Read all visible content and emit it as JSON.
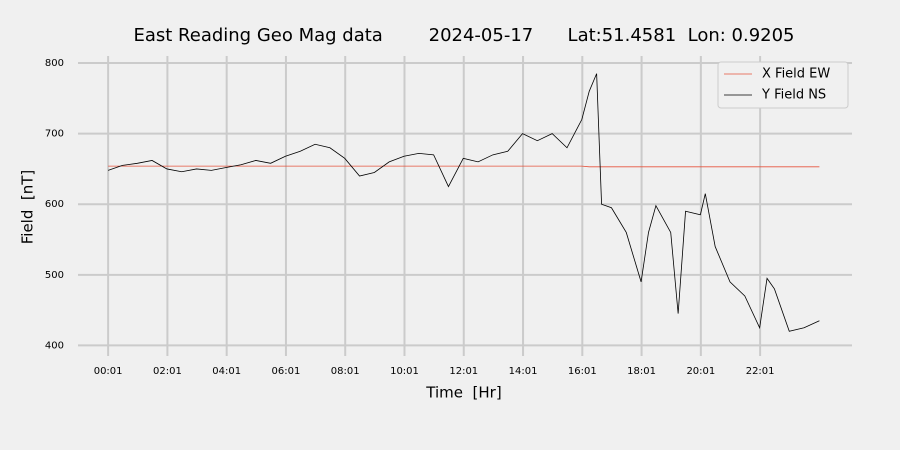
{
  "chart_data": {
    "type": "line",
    "title": "East Reading Geo Mag data        2024-05-17      Lat:51.4581  Lon: 0.9205",
    "x_label": "Time  [Hr]",
    "y_label": "Field  [nT]",
    "x": [
      1,
      30,
      60,
      90,
      120,
      150,
      180,
      210,
      240,
      270,
      300,
      330,
      360,
      390,
      420,
      450,
      480,
      510,
      540,
      570,
      600,
      630,
      660,
      690,
      720,
      750,
      780,
      810,
      840,
      870,
      900,
      930,
      960,
      975,
      990,
      1000,
      1020,
      1050,
      1080,
      1095,
      1110,
      1140,
      1155,
      1170,
      1200,
      1210,
      1230,
      1260,
      1290,
      1320,
      1335,
      1350,
      1380,
      1410,
      1441
    ],
    "series": [
      {
        "name": "X Field EW",
        "color": "#e5533d",
        "values": [
          654,
          654,
          654,
          654,
          654,
          654,
          654,
          654,
          654,
          654,
          654,
          654,
          654,
          654,
          654,
          654,
          654,
          654,
          654,
          654,
          654,
          654,
          654,
          654,
          654,
          654,
          654,
          654,
          654,
          654,
          654,
          654,
          654,
          653,
          653,
          653,
          653,
          653,
          653,
          653,
          653,
          653,
          653,
          653,
          653,
          653,
          653,
          653,
          653,
          653,
          653,
          653,
          653,
          653,
          653
        ]
      },
      {
        "name": "Y Field NS",
        "color": "#000000",
        "values": [
          648,
          655,
          658,
          662,
          650,
          646,
          650,
          648,
          652,
          656,
          662,
          658,
          668,
          675,
          685,
          680,
          665,
          640,
          645,
          660,
          668,
          672,
          670,
          625,
          665,
          660,
          670,
          675,
          700,
          690,
          700,
          680,
          720,
          760,
          785,
          600,
          595,
          560,
          490,
          560,
          598,
          560,
          445,
          590,
          585,
          615,
          540,
          490,
          470,
          425,
          495,
          480,
          420,
          425,
          435
        ]
      }
    ],
    "xlim": [
      -60,
      1507
    ],
    "ylim": [
      385,
      810
    ],
    "xticks": [
      {
        "value": 1,
        "label": "00:01"
      },
      {
        "value": 121,
        "label": "02:01"
      },
      {
        "value": 241,
        "label": "04:01"
      },
      {
        "value": 361,
        "label": "06:01"
      },
      {
        "value": 481,
        "label": "08:01"
      },
      {
        "value": 601,
        "label": "10:01"
      },
      {
        "value": 721,
        "label": "12:01"
      },
      {
        "value": 841,
        "label": "14:01"
      },
      {
        "value": 961,
        "label": "16:01"
      },
      {
        "value": 1081,
        "label": "18:01"
      },
      {
        "value": 1201,
        "label": "20:01"
      },
      {
        "value": 1321,
        "label": "22:01"
      }
    ],
    "yticks": [
      400,
      500,
      600,
      700,
      800
    ],
    "grid": true,
    "legend": "upper right"
  }
}
